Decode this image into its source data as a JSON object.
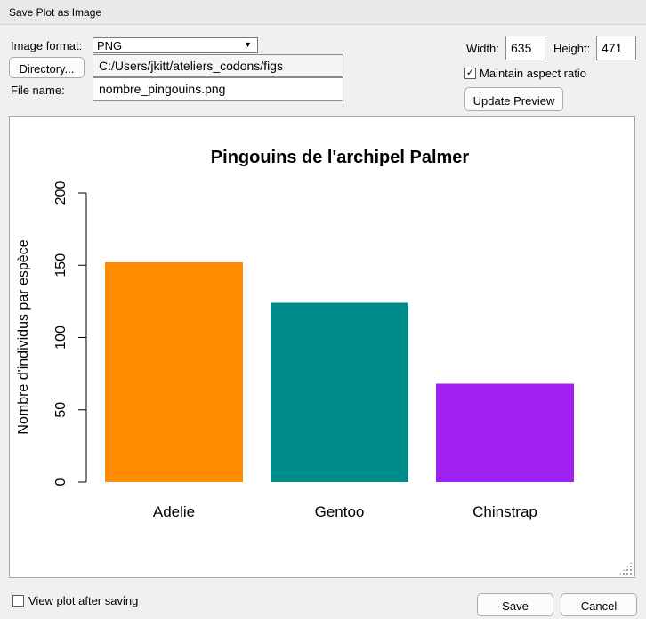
{
  "window": {
    "title": "Save Plot as Image"
  },
  "format": {
    "label": "Image format:",
    "value": "PNG"
  },
  "directory": {
    "button_label": "Directory...",
    "path": "C:/Users/jkitt/ateliers_codons/figs"
  },
  "filename": {
    "label": "File name:",
    "value": "nombre_pingouins.png"
  },
  "size": {
    "width_label": "Width:",
    "width": "635",
    "height_label": "Height:",
    "height": "471"
  },
  "aspect": {
    "label": "Maintain aspect ratio",
    "checked": true
  },
  "update_preview_label": "Update Preview",
  "view_after_saving": {
    "label": "View plot after saving",
    "checked": false
  },
  "footer": {
    "save_label": "Save",
    "cancel_label": "Cancel"
  },
  "chart_data": {
    "type": "bar",
    "title": "Pingouins de l'archipel Palmer",
    "ylabel": "Nombre d'individus par espèce",
    "xlabel": "",
    "categories": [
      "Adelie",
      "Gentoo",
      "Chinstrap"
    ],
    "values": [
      152,
      124,
      68
    ],
    "colors": [
      "#ff8c00",
      "#008b8b",
      "#a020f0"
    ],
    "ylim": [
      0,
      200
    ],
    "yticks": [
      0,
      50,
      100,
      150,
      200
    ],
    "grid": false,
    "legend": "none"
  }
}
